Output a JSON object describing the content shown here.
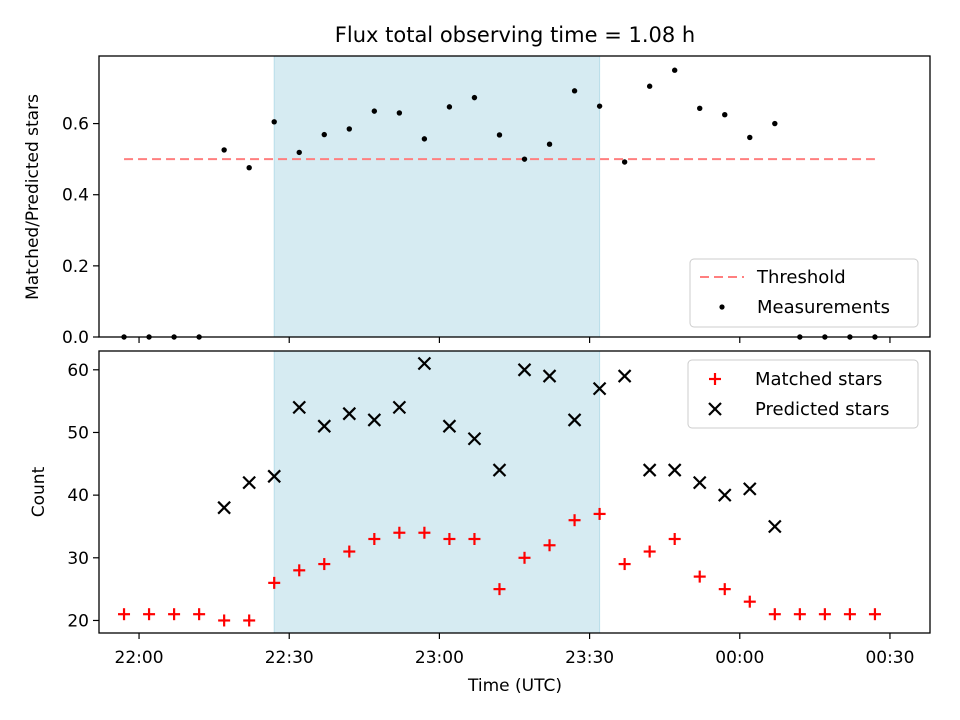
{
  "chart_data": [
    {
      "type": "scatter",
      "title": "Flux total observing time = 1.08 h",
      "ylabel": "Matched/Predicted stars",
      "xlabel": "",
      "ylim": [
        0,
        0.79
      ],
      "xlim": [
        "21:52",
        "00:38"
      ],
      "yticks": [
        "0.0",
        "0.2",
        "0.4",
        "0.6"
      ],
      "ytick_values": [
        0,
        0.2,
        0.4,
        0.6
      ],
      "shaded_interval": [
        "22:27",
        "23:32"
      ],
      "threshold": {
        "name": "Threshold",
        "value": 0.5,
        "x_from": "21:57",
        "x_to": "00:27",
        "color": "#ff7f7f"
      },
      "series": [
        {
          "name": "Measurements",
          "color": "#000000",
          "points": [
            {
              "x": "21:57",
              "y": 0.0
            },
            {
              "x": "22:02",
              "y": 0.0
            },
            {
              "x": "22:07",
              "y": 0.0
            },
            {
              "x": "22:12",
              "y": 0.0
            },
            {
              "x": "22:17",
              "y": 0.526
            },
            {
              "x": "22:22",
              "y": 0.476
            },
            {
              "x": "22:27",
              "y": 0.605
            },
            {
              "x": "22:32",
              "y": 0.519
            },
            {
              "x": "22:37",
              "y": 0.569
            },
            {
              "x": "22:42",
              "y": 0.585
            },
            {
              "x": "22:47",
              "y": 0.635
            },
            {
              "x": "22:52",
              "y": 0.63
            },
            {
              "x": "22:57",
              "y": 0.557
            },
            {
              "x": "23:02",
              "y": 0.647
            },
            {
              "x": "23:07",
              "y": 0.673
            },
            {
              "x": "23:12",
              "y": 0.568
            },
            {
              "x": "23:17",
              "y": 0.5
            },
            {
              "x": "23:22",
              "y": 0.542
            },
            {
              "x": "23:27",
              "y": 0.692
            },
            {
              "x": "23:32",
              "y": 0.649
            },
            {
              "x": "23:37",
              "y": 0.492
            },
            {
              "x": "23:42",
              "y": 0.705
            },
            {
              "x": "23:47",
              "y": 0.75
            },
            {
              "x": "23:52",
              "y": 0.643
            },
            {
              "x": "23:57",
              "y": 0.625
            },
            {
              "x": "00:02",
              "y": 0.561
            },
            {
              "x": "00:07",
              "y": 0.6
            },
            {
              "x": "00:12",
              "y": 0.0
            },
            {
              "x": "00:17",
              "y": 0.0
            },
            {
              "x": "00:22",
              "y": 0.0
            },
            {
              "x": "00:27",
              "y": 0.0
            }
          ]
        }
      ],
      "legend": {
        "position": "lower-right",
        "entries": [
          "Threshold",
          "Measurements"
        ]
      }
    },
    {
      "type": "scatter",
      "title": "",
      "xlabel": "Time (UTC)",
      "ylabel": "Count",
      "ylim": [
        18,
        63
      ],
      "xlim": [
        "21:52",
        "00:38"
      ],
      "xticks": [
        "22:00",
        "22:30",
        "23:00",
        "23:30",
        "00:00",
        "00:30"
      ],
      "yticks": [
        "20",
        "30",
        "40",
        "50",
        "60"
      ],
      "ytick_values": [
        20,
        30,
        40,
        50,
        60
      ],
      "shaded_interval": [
        "22:27",
        "23:32"
      ],
      "series": [
        {
          "name": "Matched stars",
          "marker": "plus",
          "color": "#ff0000",
          "points": [
            {
              "x": "21:57",
              "y": 21
            },
            {
              "x": "22:02",
              "y": 21
            },
            {
              "x": "22:07",
              "y": 21
            },
            {
              "x": "22:12",
              "y": 21
            },
            {
              "x": "22:17",
              "y": 20
            },
            {
              "x": "22:22",
              "y": 20
            },
            {
              "x": "22:27",
              "y": 26
            },
            {
              "x": "22:32",
              "y": 28
            },
            {
              "x": "22:37",
              "y": 29
            },
            {
              "x": "22:42",
              "y": 31
            },
            {
              "x": "22:47",
              "y": 33
            },
            {
              "x": "22:52",
              "y": 34
            },
            {
              "x": "22:57",
              "y": 34
            },
            {
              "x": "23:02",
              "y": 33
            },
            {
              "x": "23:07",
              "y": 33
            },
            {
              "x": "23:12",
              "y": 25
            },
            {
              "x": "23:17",
              "y": 30
            },
            {
              "x": "23:22",
              "y": 32
            },
            {
              "x": "23:27",
              "y": 36
            },
            {
              "x": "23:32",
              "y": 37
            },
            {
              "x": "23:37",
              "y": 29
            },
            {
              "x": "23:42",
              "y": 31
            },
            {
              "x": "23:47",
              "y": 33
            },
            {
              "x": "23:52",
              "y": 27
            },
            {
              "x": "23:57",
              "y": 25
            },
            {
              "x": "00:02",
              "y": 23
            },
            {
              "x": "00:07",
              "y": 21
            },
            {
              "x": "00:12",
              "y": 21
            },
            {
              "x": "00:17",
              "y": 21
            },
            {
              "x": "00:22",
              "y": 21
            },
            {
              "x": "00:27",
              "y": 21
            }
          ]
        },
        {
          "name": "Predicted stars",
          "marker": "x",
          "color": "#000000",
          "points": [
            {
              "x": "22:17",
              "y": 38
            },
            {
              "x": "22:22",
              "y": 42
            },
            {
              "x": "22:27",
              "y": 43
            },
            {
              "x": "22:32",
              "y": 54
            },
            {
              "x": "22:37",
              "y": 51
            },
            {
              "x": "22:42",
              "y": 53
            },
            {
              "x": "22:47",
              "y": 52
            },
            {
              "x": "22:52",
              "y": 54
            },
            {
              "x": "22:57",
              "y": 61
            },
            {
              "x": "23:02",
              "y": 51
            },
            {
              "x": "23:07",
              "y": 49
            },
            {
              "x": "23:12",
              "y": 44
            },
            {
              "x": "23:17",
              "y": 60
            },
            {
              "x": "23:22",
              "y": 59
            },
            {
              "x": "23:27",
              "y": 52
            },
            {
              "x": "23:32",
              "y": 57
            },
            {
              "x": "23:37",
              "y": 59
            },
            {
              "x": "23:42",
              "y": 44
            },
            {
              "x": "23:47",
              "y": 44
            },
            {
              "x": "23:52",
              "y": 42
            },
            {
              "x": "23:57",
              "y": 40
            },
            {
              "x": "00:02",
              "y": 41
            },
            {
              "x": "00:07",
              "y": 35
            }
          ]
        }
      ],
      "legend": {
        "position": "top-right",
        "entries": [
          "Matched stars",
          "Predicted stars"
        ]
      }
    }
  ],
  "colors": {
    "shade": "#add8e6",
    "threshold": "#ff7f7f",
    "matched": "#ff0000",
    "predicted": "#000000"
  }
}
